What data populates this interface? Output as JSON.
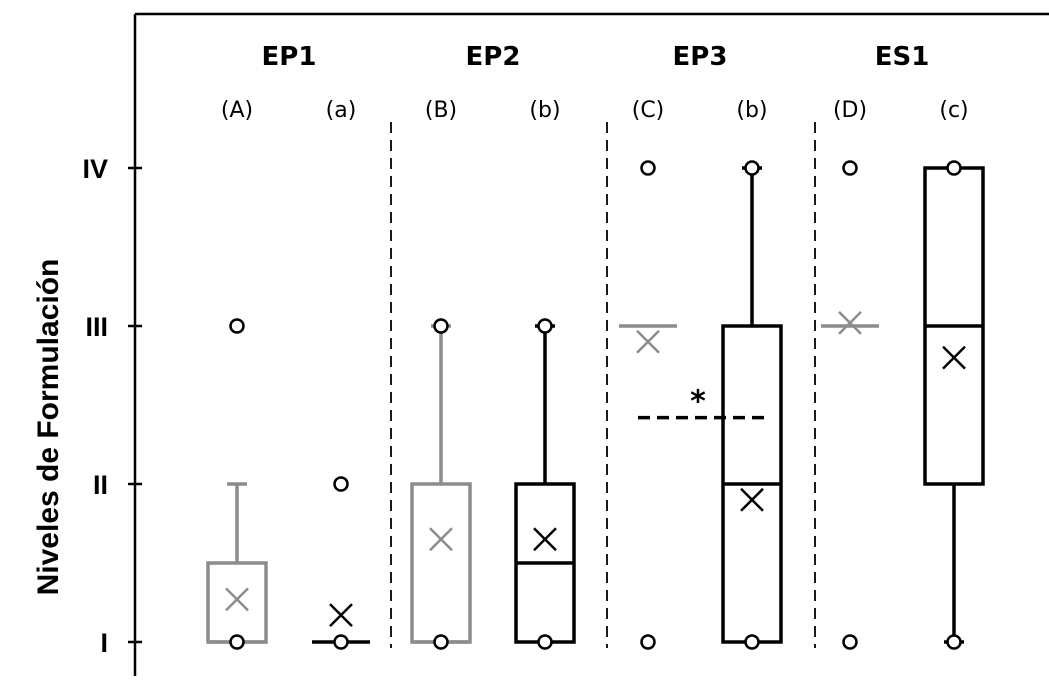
{
  "chart_data": {
    "type": "box",
    "title": "",
    "xlabel": "",
    "ylabel": "Niveles de Formulación",
    "ylim": [
      1,
      4
    ],
    "y_ticks": [
      {
        "value": 1,
        "label": "I"
      },
      {
        "value": 2,
        "label": "II"
      },
      {
        "value": 3,
        "label": "III"
      },
      {
        "value": 4,
        "label": "IV"
      }
    ],
    "grid": false,
    "groups": [
      {
        "name": "EP1",
        "boxes": [
          {
            "label": "(A)",
            "color": "#8c8c8c",
            "min": 1,
            "q1": 1,
            "median": 1,
            "q3": 1.5,
            "max": 2,
            "mean": 1.27,
            "outliers": [
              1,
              3
            ]
          },
          {
            "label": "(a)",
            "color": "#000000",
            "min": 1,
            "q1": 1,
            "median": 1,
            "q3": 1,
            "max": 1,
            "mean": 1.17,
            "outliers": [
              1,
              2
            ]
          }
        ]
      },
      {
        "name": "EP2",
        "boxes": [
          {
            "label": "(B)",
            "color": "#8c8c8c",
            "min": 1,
            "q1": 1,
            "median": 1,
            "q3": 2,
            "max": 3,
            "mean": 1.65,
            "outliers": [
              1,
              3
            ]
          },
          {
            "label": "(b)",
            "color": "#000000",
            "min": 1,
            "q1": 1,
            "median": 1.5,
            "q3": 2,
            "max": 3,
            "mean": 1.65,
            "outliers": [
              1,
              3
            ]
          }
        ]
      },
      {
        "name": "EP3",
        "boxes": [
          {
            "label": "(C)",
            "color": "#8c8c8c",
            "min": 3,
            "q1": 3,
            "median": 3,
            "q3": 3,
            "max": 3,
            "mean": 2.9,
            "outliers": [
              1,
              4
            ]
          },
          {
            "label": "(b)",
            "color": "#000000",
            "min": 1,
            "q1": 1,
            "median": 2,
            "q3": 3,
            "max": 4,
            "mean": 1.9,
            "outliers": [
              1,
              4
            ]
          }
        ]
      },
      {
        "name": "ES1",
        "boxes": [
          {
            "label": "(D)",
            "color": "#8c8c8c",
            "min": 3,
            "q1": 3,
            "median": 3,
            "q3": 3,
            "max": 3,
            "mean": 3.02,
            "outliers": [
              1,
              4
            ]
          },
          {
            "label": "(c)",
            "color": "#000000",
            "min": 1,
            "q1": 2,
            "median": 3,
            "q3": 4,
            "max": 4,
            "mean": 2.8,
            "outliers": [
              1,
              4
            ]
          }
        ]
      }
    ],
    "annotations": [
      {
        "text": "*",
        "group": "EP3",
        "dashed_line_value": 2.42
      }
    ]
  }
}
